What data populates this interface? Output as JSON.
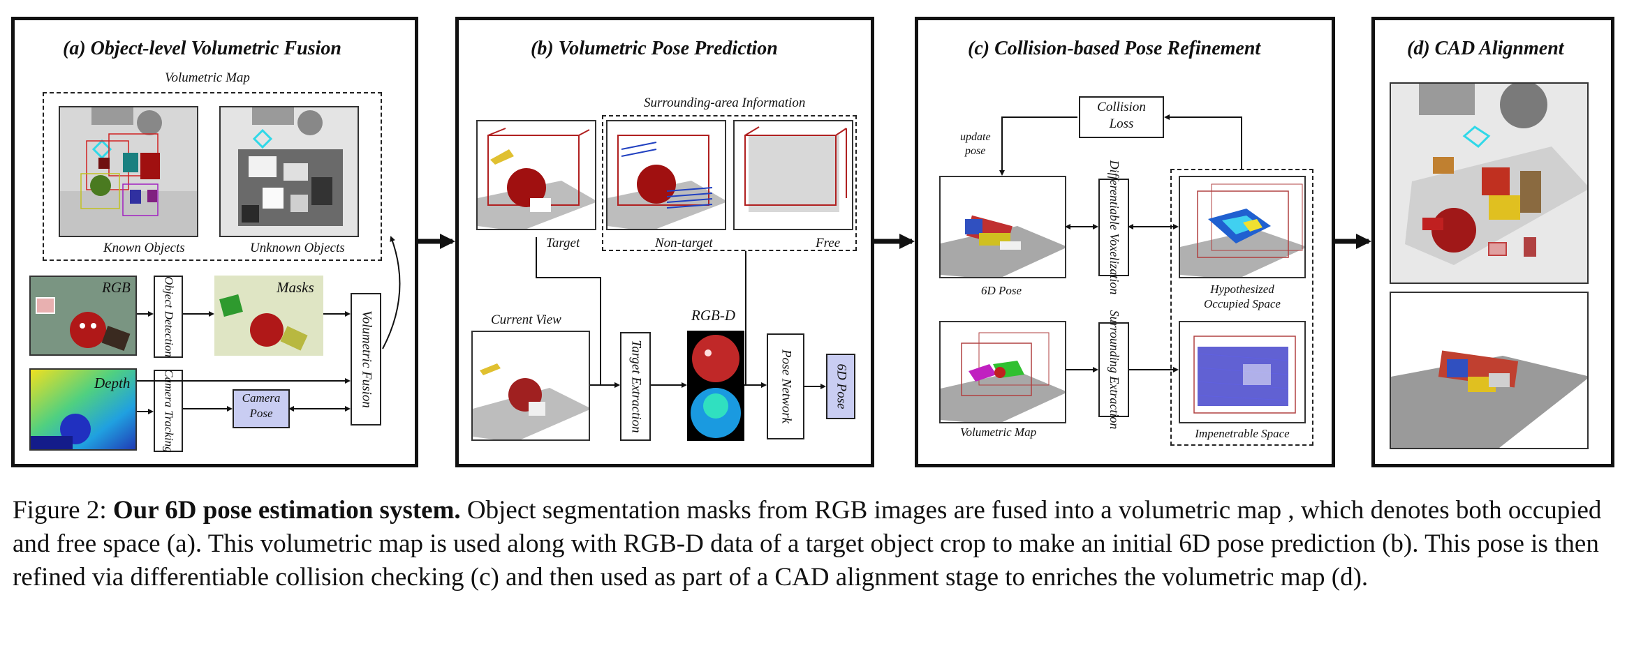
{
  "panels": {
    "a": {
      "title": "(a) Object-level Volumetric Fusion",
      "volumetric_map": "Volumetric Map",
      "known_objects": "Known Objects",
      "unknown_objects": "Unknown Objects",
      "rgb": "RGB",
      "depth": "Depth",
      "object_detection": "Object Detection",
      "masks": "Masks",
      "camera_tracking": "Camera Tracking",
      "camera_pose": "Camera Pose",
      "volumetric_fusion": "Volumetric Fusion"
    },
    "b": {
      "title": "(b) Volumetric Pose Prediction",
      "surrounding": "Surrounding-area Information",
      "target": "Target",
      "non_target": "Non-target",
      "free": "Free",
      "current_view": "Current View",
      "rgbd": "RGB-D",
      "target_extraction": "Target Extraction",
      "pose_network": "Pose Network",
      "pose_6d": "6D Pose"
    },
    "c": {
      "title": "(c) Collision-based Pose Refinement",
      "collision_loss_1": "Collision",
      "collision_loss_2": "Loss",
      "update_pose_1": "update",
      "update_pose_2": "pose",
      "pose_6d": "6D Pose",
      "diff_vox": "Differentiable Voxelization",
      "hypo_1": "Hypothesized",
      "hypo_2": "Occupied Space",
      "volumetric_map": "Volumetric Map",
      "surrounding_extraction": "Surrounding Extraction",
      "impenetrable": "Impenetrable Space"
    },
    "d": {
      "title": "(d) CAD Alignment"
    }
  },
  "caption": {
    "prefix": "Figure 2: ",
    "bold": "Our 6D pose estimation system.",
    "text": " Object segmentation masks from RGB images are fused into a volumetric map , which denotes both occupied and free space (a). This volumetric map is used along with RGB-D data of a target object crop to make an initial 6D pose prediction (b). This pose is then refined via differentiable collision checking (c) and then used as part of a CAD alignment stage to enriches the volumetric map (d)."
  },
  "colors": {
    "pose_box": "#c9cdf2",
    "mask_bg": "#dfe5c4",
    "scene_gray": "#bfbfbf",
    "red_object": "#b81818"
  }
}
